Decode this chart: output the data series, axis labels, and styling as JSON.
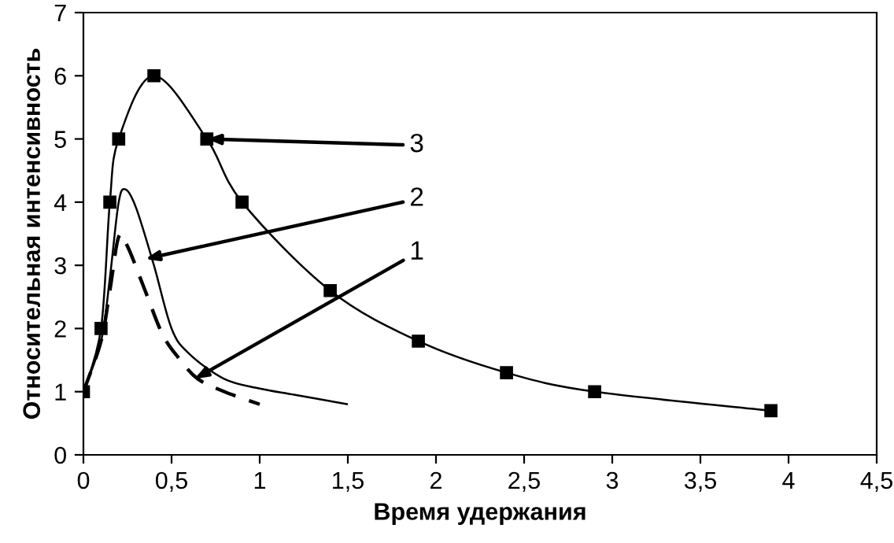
{
  "chart_data": {
    "type": "line",
    "xlabel": "Время удержания",
    "ylabel": "Относительная интенсивность",
    "xlim": [
      0,
      4.5
    ],
    "xticks": [
      0,
      {
        "value": 0.5,
        "label": "0,5"
      },
      1,
      {
        "value": 1.5,
        "label": "1,5"
      },
      2,
      {
        "value": 2.5,
        "label": "2,5"
      },
      3,
      {
        "value": 3.5,
        "label": "3,5"
      },
      4,
      {
        "value": 4.5,
        "label": "4,5"
      }
    ],
    "ylim": [
      0,
      7
    ],
    "yticks": [
      0,
      1,
      2,
      3,
      4,
      5,
      6,
      7
    ],
    "grid": false,
    "legend": false,
    "series": [
      {
        "color": "#000000",
        "line_style": "dashed",
        "marker": "none",
        "x": [
          0,
          0.1,
          0.15,
          0.2,
          0.25,
          0.35,
          0.45,
          0.55,
          0.65,
          0.8,
          1.0
        ],
        "values": [
          1,
          1.8,
          2.6,
          3.45,
          3.3,
          2.6,
          1.9,
          1.5,
          1.2,
          1.0,
          0.8
        ]
      },
      {
        "color": "#000000",
        "line_style": "solid",
        "marker": "none",
        "x": [
          0,
          0.1,
          0.15,
          0.2,
          0.24,
          0.3,
          0.4,
          0.5,
          0.6,
          0.8,
          1.0,
          1.2,
          1.5
        ],
        "values": [
          1,
          1.8,
          2.8,
          4.0,
          4.2,
          3.9,
          3.0,
          2.0,
          1.6,
          1.2,
          1.05,
          0.95,
          0.8
        ]
      },
      {
        "color": "#000000",
        "line_style": "solid",
        "marker": "square",
        "x": [
          0,
          0.1,
          0.15,
          0.2,
          0.4,
          0.7,
          0.9,
          1.4,
          1.9,
          2.4,
          2.9,
          3.9
        ],
        "values": [
          1,
          2,
          4,
          5,
          6,
          5,
          4,
          2.6,
          1.8,
          1.3,
          1,
          0.7
        ]
      }
    ],
    "annotations": [
      {
        "text": "1",
        "x": 0.63,
        "y": 1.2
      },
      {
        "text": "2",
        "x": 0.35,
        "y": 3.1
      },
      {
        "text": "3",
        "x": 0.7,
        "y": 5.0
      }
    ]
  }
}
